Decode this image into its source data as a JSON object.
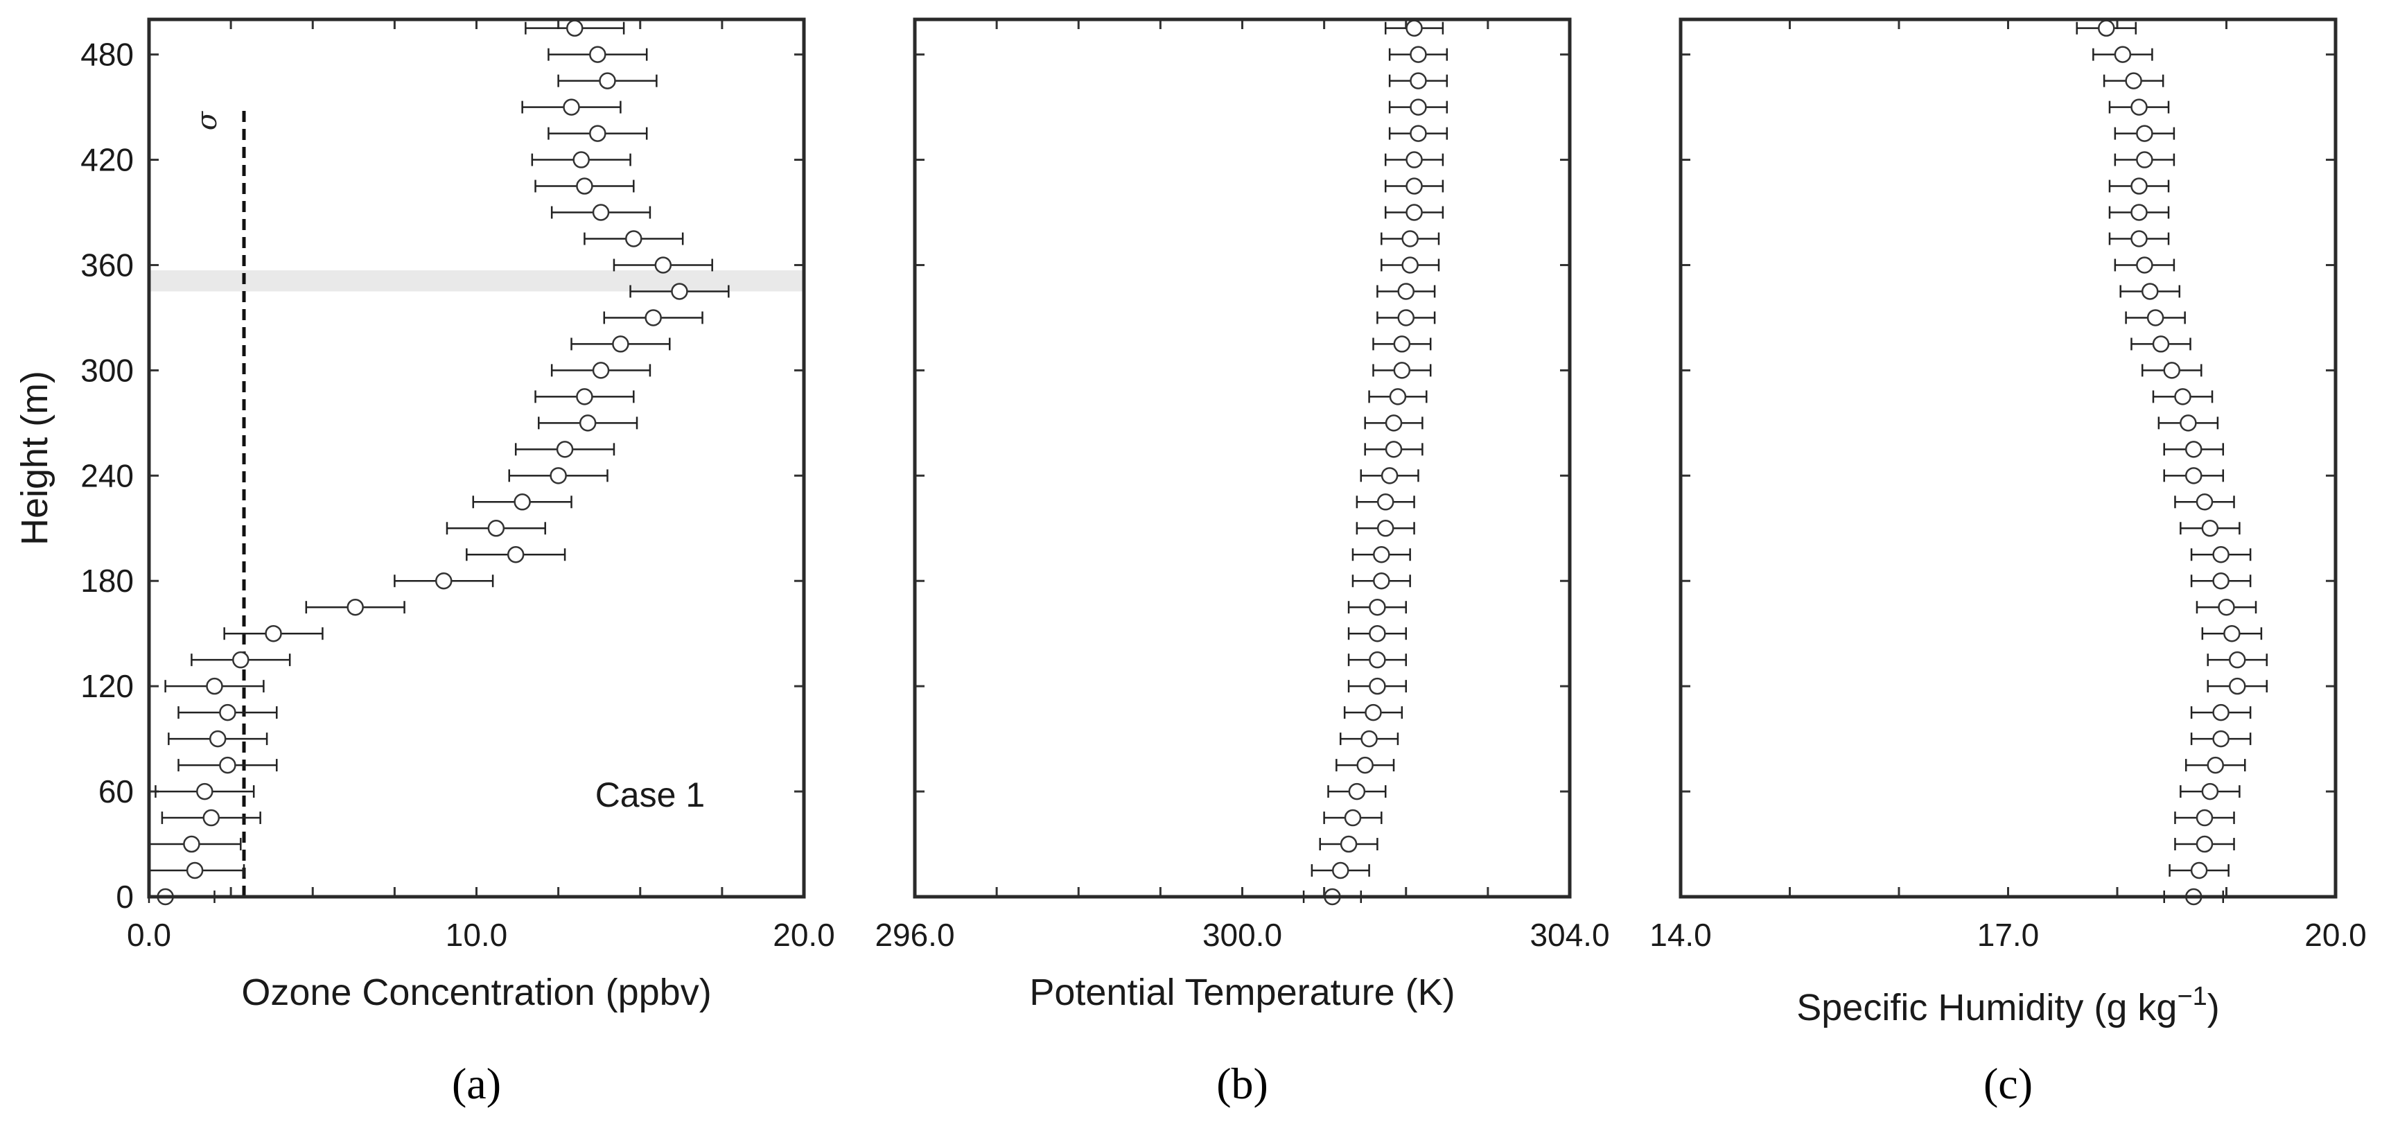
{
  "chart_data": [
    {
      "type": "scatter",
      "panel_label": "(a)",
      "title": "",
      "xlabel": "Ozone Concentration (ppbv)",
      "ylabel": "Height (m)",
      "xlim": [
        0,
        20
      ],
      "ylim": [
        0,
        500
      ],
      "xticks": [
        "0.0",
        "10.0",
        "20.0"
      ],
      "xtick_values": [
        0,
        10,
        20
      ],
      "xminor": [
        2.5,
        5,
        7.5,
        12.5,
        15,
        17.5
      ],
      "yticks": [
        "0",
        "60",
        "120",
        "180",
        "240",
        "300",
        "360",
        "420",
        "480"
      ],
      "ytick_values": [
        0,
        60,
        120,
        180,
        240,
        300,
        360,
        420,
        480
      ],
      "annotation": "Case 1",
      "sigma_label": "σ",
      "sigma_line": {
        "x": 2.9,
        "y_from": 0,
        "y_to": 450
      },
      "shaded_band": {
        "y_from": 345,
        "y_to": 357
      },
      "heights": [
        0,
        15,
        30,
        45,
        60,
        75,
        90,
        105,
        120,
        135,
        150,
        165,
        180,
        195,
        210,
        225,
        240,
        255,
        270,
        285,
        300,
        315,
        330,
        345,
        360,
        375,
        390,
        405,
        420,
        435,
        450,
        465,
        480,
        495
      ],
      "values": [
        0.5,
        1.4,
        1.3,
        1.9,
        1.7,
        2.4,
        2.1,
        2.4,
        2.0,
        2.8,
        3.8,
        6.3,
        9.0,
        11.2,
        10.6,
        11.4,
        12.5,
        12.7,
        13.4,
        13.3,
        13.8,
        14.4,
        15.4,
        16.2,
        15.7,
        14.8,
        13.8,
        13.3,
        13.2,
        13.7,
        12.9,
        14.0,
        13.7,
        13.0
      ],
      "error": 1.5
    },
    {
      "type": "scatter",
      "panel_label": "(b)",
      "title": "",
      "xlabel": "Potential Temperature (K)",
      "ylabel": "",
      "xlim": [
        296,
        304
      ],
      "ylim": [
        0,
        500
      ],
      "xticks": [
        "296.0",
        "300.0",
        "304.0"
      ],
      "xtick_values": [
        296,
        300,
        304
      ],
      "xminor": [
        297,
        298,
        299,
        301,
        302,
        303
      ],
      "yticks": [],
      "ytick_values": [
        0,
        60,
        120,
        180,
        240,
        300,
        360,
        420,
        480
      ],
      "heights": [
        0,
        15,
        30,
        45,
        60,
        75,
        90,
        105,
        120,
        135,
        150,
        165,
        180,
        195,
        210,
        225,
        240,
        255,
        270,
        285,
        300,
        315,
        330,
        345,
        360,
        375,
        390,
        405,
        420,
        435,
        450,
        465,
        480,
        495
      ],
      "values": [
        301.1,
        301.2,
        301.3,
        301.35,
        301.4,
        301.5,
        301.55,
        301.6,
        301.65,
        301.65,
        301.65,
        301.65,
        301.7,
        301.7,
        301.75,
        301.75,
        301.8,
        301.85,
        301.85,
        301.9,
        301.95,
        301.95,
        302.0,
        302.0,
        302.05,
        302.05,
        302.1,
        302.1,
        302.1,
        302.15,
        302.15,
        302.15,
        302.15,
        302.1
      ],
      "error": 0.35
    },
    {
      "type": "scatter",
      "panel_label": "(c)",
      "title": "",
      "xlabel": "Specific Humidity (g kg",
      "xlabel_sup": "−1",
      "xlabel_tail": ")",
      "ylabel": "",
      "xlim": [
        14,
        20
      ],
      "ylim": [
        0,
        500
      ],
      "xticks": [
        "14.0",
        "17.0",
        "20.0"
      ],
      "xtick_values": [
        14,
        17,
        20
      ],
      "xminor": [
        15,
        16,
        18,
        19
      ],
      "yticks": [],
      "ytick_values": [
        0,
        60,
        120,
        180,
        240,
        300,
        360,
        420,
        480
      ],
      "heights": [
        0,
        15,
        30,
        45,
        60,
        75,
        90,
        105,
        120,
        135,
        150,
        165,
        180,
        195,
        210,
        225,
        240,
        255,
        270,
        285,
        300,
        315,
        330,
        345,
        360,
        375,
        390,
        405,
        420,
        435,
        450,
        465,
        480,
        495
      ],
      "values": [
        18.7,
        18.75,
        18.8,
        18.8,
        18.85,
        18.9,
        18.95,
        18.95,
        19.1,
        19.1,
        19.05,
        19.0,
        18.95,
        18.95,
        18.85,
        18.8,
        18.7,
        18.7,
        18.65,
        18.6,
        18.5,
        18.4,
        18.35,
        18.3,
        18.25,
        18.2,
        18.2,
        18.2,
        18.25,
        18.25,
        18.2,
        18.15,
        18.05,
        17.9
      ],
      "error": 0.27
    }
  ]
}
